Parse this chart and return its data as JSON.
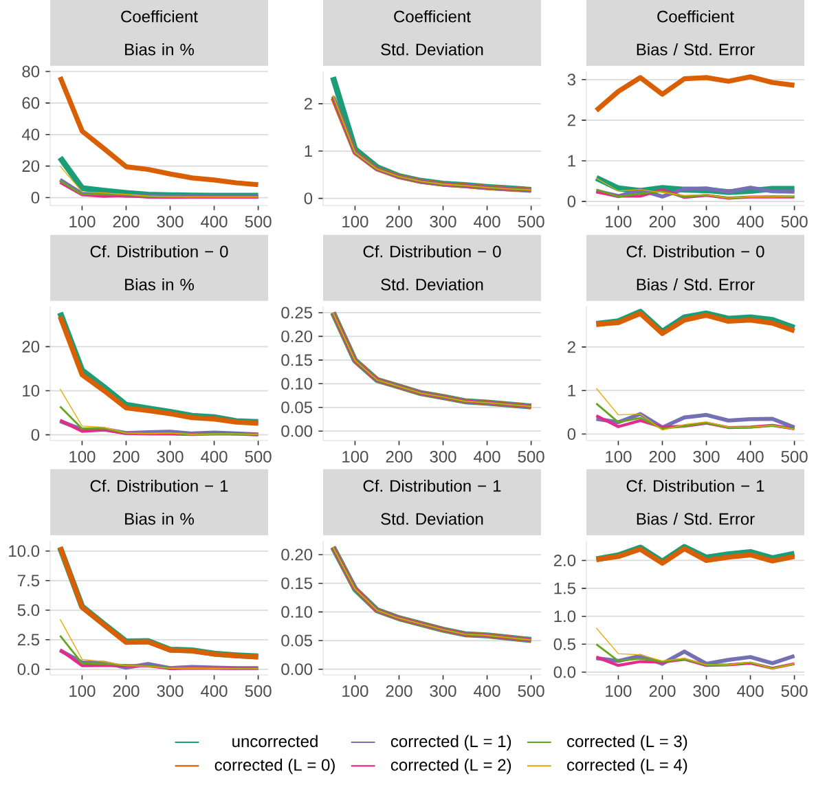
{
  "chart_data": [
    {
      "type": "line",
      "title": "Coefficient",
      "subtitle": "Bias in %",
      "x": [
        50,
        100,
        150,
        200,
        250,
        300,
        350,
        400,
        450,
        500
      ],
      "xlim": [
        27.5,
        522.5
      ],
      "xticks": [
        100,
        200,
        300,
        400,
        500
      ],
      "ylim": [
        -5,
        80
      ],
      "yticks": [
        0,
        20,
        40,
        60,
        80
      ],
      "grid": "y",
      "series": [
        {
          "color": "#1b9e77",
          "values": [
            25.4,
            6.0,
            4.3,
            2.9,
            1.8,
            1.5,
            1.3,
            1.2,
            1.2,
            1.2
          ]
        },
        {
          "color": "#d95f02",
          "values": [
            76.5,
            42.2,
            31,
            19.6,
            17.9,
            15,
            12.5,
            11.2,
            9.4,
            8.2
          ]
        },
        {
          "color": "#7570b3",
          "values": [
            11.3,
            2.4,
            2.0,
            1.2,
            1.0,
            0.8,
            0.8,
            0.7,
            0.7,
            0.7
          ]
        },
        {
          "color": "#e7298a",
          "values": [
            9.6,
            1.8,
            0.8,
            1.4,
            0.3,
            0.2,
            0.3,
            0.3,
            0.3,
            0.3
          ]
        },
        {
          "color": "#66a61e",
          "values": [
            10.6,
            2.1,
            2.0,
            1.9,
            0.6,
            0.5,
            0.4,
            0.4,
            0.4,
            0.4
          ]
        },
        {
          "color": "#e6ab02",
          "values": [
            20,
            3.7,
            3.0,
            2.0,
            1.0,
            0.6,
            0.5,
            0.5,
            0.5,
            0.5
          ]
        }
      ]
    },
    {
      "type": "line",
      "title": "Coefficient",
      "subtitle": "Std. Deviation",
      "x": [
        50,
        100,
        150,
        200,
        250,
        300,
        350,
        400,
        450,
        500
      ],
      "xlim": [
        27.5,
        522.5
      ],
      "xticks": [
        100,
        200,
        300,
        400,
        500
      ],
      "ylim": [
        -0.15,
        2.68
      ],
      "yticks": [
        0,
        1,
        2
      ],
      "grid": "y",
      "series": [
        {
          "color": "#1b9e77",
          "values": [
            2.56,
            1.04,
            0.66,
            0.47,
            0.37,
            0.31,
            0.28,
            0.24,
            0.21,
            0.18
          ]
        },
        {
          "color": "#d95f02",
          "values": [
            2.12,
            0.97,
            0.62,
            0.46,
            0.36,
            0.3,
            0.27,
            0.23,
            0.2,
            0.18
          ]
        },
        {
          "color": "#7570b3",
          "values": [
            2.15,
            0.97,
            0.62,
            0.46,
            0.36,
            0.3,
            0.27,
            0.23,
            0.2,
            0.18
          ]
        },
        {
          "color": "#e7298a",
          "values": [
            2.14,
            0.97,
            0.62,
            0.46,
            0.36,
            0.3,
            0.27,
            0.23,
            0.2,
            0.18
          ]
        },
        {
          "color": "#66a61e",
          "values": [
            2.16,
            0.97,
            0.62,
            0.46,
            0.36,
            0.3,
            0.27,
            0.23,
            0.2,
            0.18
          ]
        },
        {
          "color": "#e6ab02",
          "values": [
            2.18,
            0.97,
            0.62,
            0.46,
            0.36,
            0.3,
            0.27,
            0.23,
            0.2,
            0.18
          ]
        }
      ]
    },
    {
      "type": "line",
      "title": "Coefficient",
      "subtitle": "Bias / Std. Error",
      "x": [
        50,
        100,
        150,
        200,
        250,
        300,
        350,
        400,
        450,
        500
      ],
      "xlim": [
        27.5,
        522.5
      ],
      "xticks": [
        100,
        200,
        300,
        400,
        500
      ],
      "ylim": [
        -0.1,
        3.2
      ],
      "yticks": [
        0,
        1,
        2,
        3
      ],
      "grid": "y",
      "series": [
        {
          "color": "#1b9e77",
          "values": [
            0.58,
            0.32,
            0.26,
            0.33,
            0.29,
            0.28,
            0.23,
            0.26,
            0.31,
            0.31
          ]
        },
        {
          "color": "#d95f02",
          "values": [
            2.24,
            2.71,
            3.05,
            2.64,
            3.02,
            3.05,
            2.96,
            3.07,
            2.93,
            2.86
          ]
        },
        {
          "color": "#7570b3",
          "values": [
            0.26,
            0.13,
            0.28,
            0.12,
            0.31,
            0.32,
            0.24,
            0.34,
            0.25,
            0.24
          ]
        },
        {
          "color": "#e7298a",
          "values": [
            0.23,
            0.13,
            0.13,
            0.29,
            0.1,
            0.15,
            0.08,
            0.11,
            0.11,
            0.11
          ]
        },
        {
          "color": "#66a61e",
          "values": [
            0.29,
            0.12,
            0.19,
            0.25,
            0.11,
            0.16,
            0.09,
            0.11,
            0.12,
            0.12
          ]
        },
        {
          "color": "#e6ab02",
          "values": [
            0.57,
            0.26,
            0.29,
            0.22,
            0.15,
            0.17,
            0.08,
            0.12,
            0.11,
            0.13
          ]
        }
      ]
    },
    {
      "type": "line",
      "title": "Cf. Distribution − 0",
      "subtitle": "Bias in %",
      "x": [
        50,
        100,
        150,
        200,
        250,
        300,
        350,
        400,
        450,
        500
      ],
      "xlim": [
        27.5,
        522.5
      ],
      "xticks": [
        100,
        200,
        300,
        400,
        500
      ],
      "ylim": [
        -1.3,
        29.1
      ],
      "yticks": [
        0,
        10,
        20
      ],
      "grid": "y",
      "series": [
        {
          "color": "#1b9e77",
          "values": [
            27.7,
            14.6,
            10.8,
            6.8,
            6.0,
            5.2,
            4.3,
            4.0,
            3.1,
            2.9
          ]
        },
        {
          "color": "#d95f02",
          "values": [
            26.8,
            13.6,
            10.0,
            6.1,
            5.5,
            4.8,
            3.9,
            3.6,
            2.9,
            2.6
          ]
        },
        {
          "color": "#7570b3",
          "values": [
            3.1,
            1.2,
            1.3,
            0.4,
            0.6,
            0.7,
            0.3,
            0.5,
            0.3,
            0.1
          ]
        },
        {
          "color": "#e7298a",
          "values": [
            3.3,
            0.8,
            1.1,
            0.3,
            0.2,
            0.2,
            0.1,
            0.2,
            0.2,
            0.1
          ]
        },
        {
          "color": "#66a61e",
          "values": [
            6.4,
            1.4,
            1.5,
            0.4,
            0.3,
            0.4,
            0.1,
            0.2,
            0.2,
            0.1
          ]
        },
        {
          "color": "#e6ab02",
          "values": [
            10.4,
            2.0,
            1.7,
            0.4,
            0.3,
            0.4,
            0.1,
            0.2,
            0.2,
            0.1
          ]
        }
      ]
    },
    {
      "type": "line",
      "title": "Cf. Distribution − 0",
      "subtitle": "Std. Deviation",
      "x": [
        50,
        100,
        150,
        200,
        250,
        300,
        350,
        400,
        450,
        500
      ],
      "xlim": [
        27.5,
        522.5
      ],
      "xticks": [
        100,
        200,
        300,
        400,
        500
      ],
      "ylim": [
        -0.02,
        0.263
      ],
      "yticks": [
        {
          "value": 0,
          "label": "0.00"
        },
        {
          "value": 0.05,
          "label": "0.05"
        },
        {
          "value": 0.1,
          "label": "0.10"
        },
        {
          "value": 0.15,
          "label": "0.15"
        },
        {
          "value": 0.2,
          "label": "0.20"
        },
        {
          "value": 0.25,
          "label": "0.25"
        }
      ],
      "grid": "y",
      "series": [
        {
          "color": "#1b9e77",
          "values": [
            0.25,
            0.149,
            0.108,
            0.094,
            0.08,
            0.072,
            0.063,
            0.06,
            0.056,
            0.052
          ]
        },
        {
          "color": "#d95f02",
          "values": [
            0.25,
            0.149,
            0.108,
            0.094,
            0.08,
            0.072,
            0.063,
            0.06,
            0.056,
            0.052
          ]
        },
        {
          "color": "#7570b3",
          "values": [
            0.25,
            0.149,
            0.108,
            0.094,
            0.08,
            0.072,
            0.063,
            0.06,
            0.056,
            0.052
          ]
        },
        {
          "color": "#e7298a",
          "values": [
            0.25,
            0.149,
            0.108,
            0.094,
            0.08,
            0.072,
            0.063,
            0.06,
            0.056,
            0.052
          ]
        },
        {
          "color": "#66a61e",
          "values": [
            0.25,
            0.149,
            0.108,
            0.094,
            0.08,
            0.072,
            0.063,
            0.06,
            0.056,
            0.052
          ]
        },
        {
          "color": "#e6ab02",
          "values": [
            0.25,
            0.149,
            0.108,
            0.094,
            0.08,
            0.072,
            0.063,
            0.06,
            0.056,
            0.052
          ]
        }
      ]
    },
    {
      "type": "line",
      "title": "Cf. Distribution − 0",
      "subtitle": "Bias / Std. Error",
      "x": [
        50,
        100,
        150,
        200,
        250,
        300,
        350,
        400,
        450,
        500
      ],
      "xlim": [
        27.5,
        522.5
      ],
      "xticks": [
        100,
        200,
        300,
        400,
        500
      ],
      "ylim": [
        -0.15,
        2.93
      ],
      "yticks": [
        0,
        1,
        2
      ],
      "grid": "y",
      "series": [
        {
          "color": "#1b9e77",
          "values": [
            2.53,
            2.59,
            2.81,
            2.35,
            2.68,
            2.77,
            2.65,
            2.68,
            2.62,
            2.44
          ]
        },
        {
          "color": "#d95f02",
          "values": [
            2.52,
            2.56,
            2.77,
            2.31,
            2.62,
            2.73,
            2.59,
            2.62,
            2.55,
            2.37
          ]
        },
        {
          "color": "#7570b3",
          "values": [
            0.35,
            0.27,
            0.46,
            0.15,
            0.38,
            0.44,
            0.31,
            0.34,
            0.35,
            0.15
          ]
        },
        {
          "color": "#e7298a",
          "values": [
            0.42,
            0.17,
            0.31,
            0.16,
            0.18,
            0.25,
            0.15,
            0.16,
            0.2,
            0.12
          ]
        },
        {
          "color": "#66a61e",
          "values": [
            0.7,
            0.27,
            0.37,
            0.12,
            0.18,
            0.26,
            0.15,
            0.15,
            0.19,
            0.12
          ]
        },
        {
          "color": "#e6ab02",
          "values": [
            1.05,
            0.44,
            0.46,
            0.09,
            0.22,
            0.28,
            0.16,
            0.16,
            0.2,
            0.11
          ]
        }
      ]
    },
    {
      "type": "line",
      "title": "Cf. Distribution − 1",
      "subtitle": "Bias in %",
      "x": [
        50,
        100,
        150,
        200,
        250,
        300,
        350,
        400,
        450,
        500
      ],
      "xlim": [
        27.5,
        522.5
      ],
      "xticks": [
        100,
        200,
        300,
        400,
        500
      ],
      "ylim": [
        -0.48,
        10.86
      ],
      "yticks": [
        {
          "value": 0,
          "label": "0.0"
        },
        {
          "value": 2.5,
          "label": "2.5"
        },
        {
          "value": 5,
          "label": "5.0"
        },
        {
          "value": 7.5,
          "label": "7.5"
        },
        {
          "value": 10,
          "label": "10.0"
        }
      ],
      "grid": "y",
      "series": [
        {
          "color": "#1b9e77",
          "values": [
            10.3,
            5.3,
            3.8,
            2.35,
            2.38,
            1.66,
            1.6,
            1.32,
            1.18,
            1.08
          ]
        },
        {
          "color": "#d95f02",
          "values": [
            10.34,
            5.24,
            3.75,
            2.28,
            2.32,
            1.62,
            1.54,
            1.28,
            1.14,
            1.04
          ]
        },
        {
          "color": "#7570b3",
          "values": [
            1.6,
            0.58,
            0.55,
            0.14,
            0.44,
            0.1,
            0.2,
            0.14,
            0.1,
            0.1
          ]
        },
        {
          "color": "#e7298a",
          "values": [
            1.64,
            0.3,
            0.32,
            0.3,
            0.28,
            0.06,
            0.1,
            0.08,
            0.06,
            0.06
          ]
        },
        {
          "color": "#66a61e",
          "values": [
            2.84,
            0.5,
            0.45,
            0.35,
            0.3,
            0.1,
            0.1,
            0.1,
            0.05,
            0.05
          ]
        },
        {
          "color": "#e6ab02",
          "values": [
            4.24,
            0.84,
            0.64,
            0.3,
            0.24,
            0.08,
            0.1,
            0.06,
            0.04,
            0.04
          ]
        }
      ]
    },
    {
      "type": "line",
      "title": "Cf. Distribution − 1",
      "subtitle": "Std. Deviation",
      "x": [
        50,
        100,
        150,
        200,
        250,
        300,
        350,
        400,
        450,
        500
      ],
      "xlim": [
        27.5,
        522.5
      ],
      "xticks": [
        100,
        200,
        300,
        400,
        500
      ],
      "ylim": [
        -0.01,
        0.224
      ],
      "yticks": [
        {
          "value": 0,
          "label": "0.00"
        },
        {
          "value": 0.05,
          "label": "0.05"
        },
        {
          "value": 0.1,
          "label": "0.10"
        },
        {
          "value": 0.15,
          "label": "0.15"
        },
        {
          "value": 0.2,
          "label": "0.20"
        }
      ],
      "grid": "y",
      "legend": "bottom",
      "series": [
        {
          "name": "uncorrected",
          "color": "#1b9e77",
          "values": [
            0.213,
            0.14,
            0.103,
            0.089,
            0.079,
            0.069,
            0.061,
            0.059,
            0.055,
            0.051
          ]
        },
        {
          "name": "corrected (L = 0)",
          "color": "#d95f02",
          "values": [
            0.213,
            0.14,
            0.103,
            0.089,
            0.079,
            0.069,
            0.061,
            0.059,
            0.055,
            0.051
          ]
        },
        {
          "name": "corrected (L = 1)",
          "color": "#7570b3",
          "values": [
            0.213,
            0.14,
            0.103,
            0.089,
            0.079,
            0.069,
            0.061,
            0.059,
            0.055,
            0.051
          ]
        },
        {
          "name": "corrected (L = 2)",
          "color": "#e7298a",
          "values": [
            0.213,
            0.14,
            0.103,
            0.089,
            0.079,
            0.069,
            0.061,
            0.059,
            0.055,
            0.051
          ]
        },
        {
          "name": "corrected (L = 3)",
          "color": "#66a61e",
          "values": [
            0.213,
            0.14,
            0.103,
            0.089,
            0.079,
            0.069,
            0.061,
            0.059,
            0.055,
            0.051
          ]
        },
        {
          "name": "corrected (L = 4)",
          "color": "#e6ab02",
          "values": [
            0.213,
            0.14,
            0.103,
            0.089,
            0.079,
            0.069,
            0.061,
            0.059,
            0.055,
            0.051
          ]
        }
      ]
    },
    {
      "type": "line",
      "title": "Cf. Distribution − 1",
      "subtitle": "Bias / Std. Error",
      "x": [
        50,
        100,
        150,
        200,
        250,
        300,
        350,
        400,
        450,
        500
      ],
      "xlim": [
        27.5,
        522.5
      ],
      "xticks": [
        100,
        200,
        300,
        400,
        500
      ],
      "ylim": [
        -0.05,
        2.35
      ],
      "yticks": [
        {
          "value": 0,
          "label": "0.0"
        },
        {
          "value": 0.5,
          "label": "0.5"
        },
        {
          "value": 1,
          "label": "1.0"
        },
        {
          "value": 1.5,
          "label": "1.5"
        },
        {
          "value": 2,
          "label": "2.0"
        }
      ],
      "grid": "y",
      "series": [
        {
          "color": "#1b9e77",
          "values": [
            2.02,
            2.09,
            2.23,
            1.98,
            2.24,
            2.05,
            2.11,
            2.15,
            2.04,
            2.12
          ]
        },
        {
          "color": "#d95f02",
          "values": [
            2.02,
            2.07,
            2.2,
            1.95,
            2.21,
            2.0,
            2.06,
            2.1,
            1.99,
            2.07
          ]
        },
        {
          "color": "#7570b3",
          "values": [
            0.25,
            0.2,
            0.29,
            0.15,
            0.37,
            0.15,
            0.22,
            0.27,
            0.16,
            0.29
          ]
        },
        {
          "color": "#e7298a",
          "values": [
            0.27,
            0.12,
            0.19,
            0.18,
            0.23,
            0.12,
            0.13,
            0.16,
            0.07,
            0.15
          ]
        },
        {
          "color": "#66a61e",
          "values": [
            0.5,
            0.2,
            0.24,
            0.19,
            0.23,
            0.13,
            0.13,
            0.17,
            0.07,
            0.15
          ]
        },
        {
          "color": "#e6ab02",
          "values": [
            0.79,
            0.33,
            0.31,
            0.2,
            0.25,
            0.13,
            0.13,
            0.18,
            0.06,
            0.15
          ]
        }
      ]
    }
  ]
}
